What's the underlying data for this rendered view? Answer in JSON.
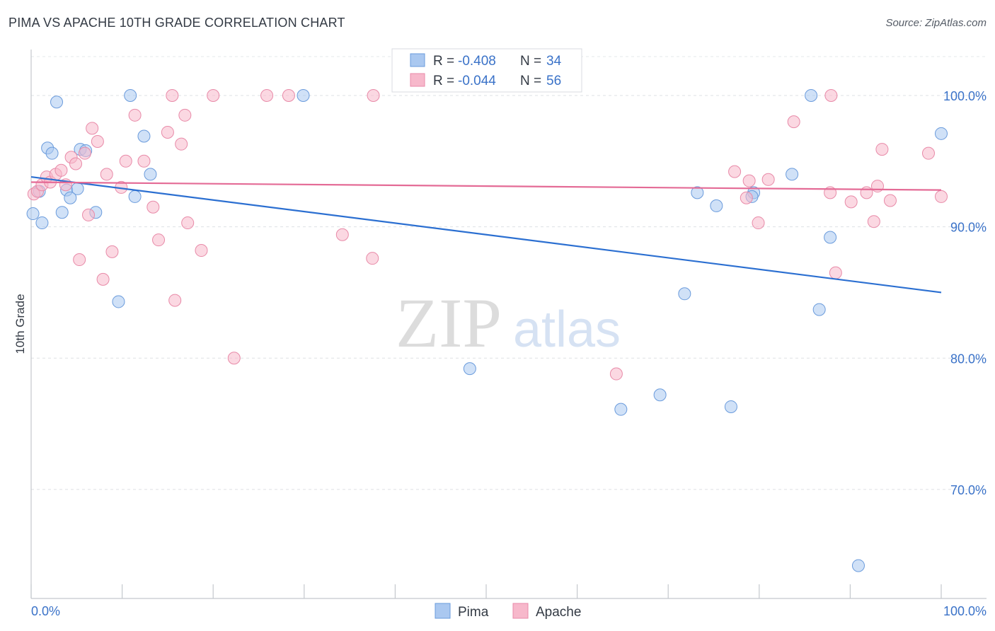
{
  "header": {
    "title": "PIMA VS APACHE 10TH GRADE CORRELATION CHART",
    "source": "Source: ZipAtlas.com"
  },
  "watermark": {
    "zip": "ZIP",
    "atlas": "atlas"
  },
  "legend_box": {
    "rows": [
      {
        "r_label": "R = ",
        "r_value": "-0.408",
        "n_label": "N = ",
        "n_value": "34"
      },
      {
        "r_label": "R = ",
        "r_value": "-0.044",
        "n_label": "N = ",
        "n_value": "56"
      }
    ]
  },
  "colors": {
    "pima_fill": "#aac8f0",
    "pima_stroke": "#6a9bdc",
    "pima_line": "#2b6fd1",
    "apache_fill": "#f7b8cb",
    "apache_stroke": "#e88aa8",
    "apache_line": "#e46b96",
    "value_text": "#3a72c8"
  },
  "chart_data": {
    "type": "scatter",
    "title": "PIMA VS APACHE 10TH GRADE CORRELATION CHART",
    "xlabel": "",
    "ylabel": "10th Grade",
    "xlim": [
      0,
      100
    ],
    "ylim": [
      61.7,
      103.5
    ],
    "x_tick_labels": [
      "0.0%",
      "100.0%"
    ],
    "y_ticks": [
      {
        "value": 100,
        "label": "100.0%"
      },
      {
        "value": 90,
        "label": "90.0%"
      },
      {
        "value": 80,
        "label": "80.0%"
      },
      {
        "value": 70,
        "label": "70.0%"
      }
    ],
    "grid": true,
    "legend": [
      "Pima",
      "Apache"
    ],
    "series": [
      {
        "name": "Pima",
        "r": -0.408,
        "n": 34,
        "trend": {
          "x": [
            0,
            100
          ],
          "y": [
            93.8,
            85.0
          ]
        },
        "points": [
          [
            0.2,
            91.0
          ],
          [
            0.9,
            92.7
          ],
          [
            1.2,
            90.3
          ],
          [
            1.8,
            96.0
          ],
          [
            2.3,
            95.6
          ],
          [
            2.8,
            99.5
          ],
          [
            3.4,
            91.1
          ],
          [
            3.9,
            92.8
          ],
          [
            4.3,
            92.2
          ],
          [
            5.1,
            92.9
          ],
          [
            5.4,
            95.9
          ],
          [
            6.0,
            95.8
          ],
          [
            7.1,
            91.1
          ],
          [
            9.6,
            84.3
          ],
          [
            10.9,
            100.0
          ],
          [
            11.4,
            92.3
          ],
          [
            12.4,
            96.9
          ],
          [
            13.1,
            94.0
          ],
          [
            29.9,
            100.0
          ],
          [
            48.2,
            79.2
          ],
          [
            64.8,
            76.1
          ],
          [
            69.1,
            77.2
          ],
          [
            71.8,
            84.9
          ],
          [
            73.2,
            92.6
          ],
          [
            75.3,
            91.6
          ],
          [
            76.9,
            76.3
          ],
          [
            79.4,
            92.6
          ],
          [
            83.6,
            94.0
          ],
          [
            85.7,
            100.0
          ],
          [
            86.6,
            83.7
          ],
          [
            87.8,
            89.2
          ],
          [
            90.9,
            64.2
          ],
          [
            100.0,
            97.1
          ],
          [
            79.2,
            92.3
          ]
        ]
      },
      {
        "name": "Apache",
        "r": -0.044,
        "n": 56,
        "trend": {
          "x": [
            0,
            100
          ],
          "y": [
            93.4,
            92.8
          ]
        },
        "points": [
          [
            0.3,
            92.5
          ],
          [
            0.7,
            92.7
          ],
          [
            1.2,
            93.2
          ],
          [
            1.7,
            93.8
          ],
          [
            2.1,
            93.4
          ],
          [
            2.7,
            94.0
          ],
          [
            3.3,
            94.3
          ],
          [
            3.8,
            93.2
          ],
          [
            4.4,
            95.3
          ],
          [
            4.9,
            94.8
          ],
          [
            5.3,
            87.5
          ],
          [
            5.9,
            95.6
          ],
          [
            6.3,
            90.9
          ],
          [
            6.7,
            97.5
          ],
          [
            7.3,
            96.5
          ],
          [
            7.9,
            86.0
          ],
          [
            8.3,
            94.0
          ],
          [
            8.9,
            88.1
          ],
          [
            9.9,
            93.0
          ],
          [
            10.4,
            95.0
          ],
          [
            11.4,
            98.5
          ],
          [
            12.4,
            95.0
          ],
          [
            13.4,
            91.5
          ],
          [
            14.0,
            89.0
          ],
          [
            15.0,
            97.2
          ],
          [
            15.5,
            100.0
          ],
          [
            15.8,
            84.4
          ],
          [
            16.5,
            96.3
          ],
          [
            16.9,
            98.5
          ],
          [
            17.2,
            90.3
          ],
          [
            18.7,
            88.2
          ],
          [
            20.0,
            100.0
          ],
          [
            22.3,
            80.0
          ],
          [
            25.9,
            100.0
          ],
          [
            28.3,
            100.0
          ],
          [
            34.2,
            89.4
          ],
          [
            37.5,
            87.6
          ],
          [
            37.6,
            100.0
          ],
          [
            64.3,
            78.8
          ],
          [
            77.3,
            94.2
          ],
          [
            78.6,
            92.2
          ],
          [
            78.9,
            93.5
          ],
          [
            79.9,
            90.3
          ],
          [
            81.0,
            93.6
          ],
          [
            83.8,
            98.0
          ],
          [
            87.8,
            92.6
          ],
          [
            87.9,
            100.0
          ],
          [
            88.4,
            86.5
          ],
          [
            90.1,
            91.9
          ],
          [
            91.8,
            92.6
          ],
          [
            92.6,
            90.4
          ],
          [
            93.0,
            93.1
          ],
          [
            93.5,
            95.9
          ],
          [
            94.4,
            92.0
          ],
          [
            98.6,
            95.6
          ],
          [
            100.0,
            92.3
          ]
        ]
      }
    ]
  }
}
